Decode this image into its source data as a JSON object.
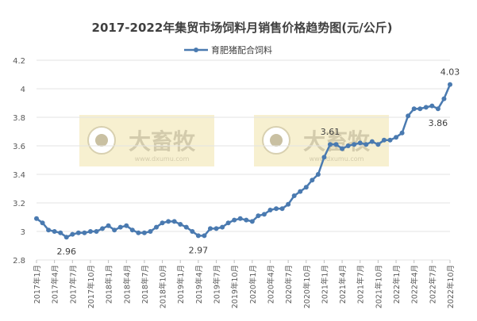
{
  "chart_data": {
    "type": "line",
    "title": "2017-2022年集贸市场饲料月销售价格趋势图(元/公斤)",
    "xlabel": "",
    "ylabel": "",
    "ylim": [
      2.8,
      4.2
    ],
    "yticks": [
      "2.8",
      "3",
      "3.2",
      "3.4",
      "3.6",
      "3.8",
      "4",
      "4.2"
    ],
    "grid": true,
    "legend_position": "top",
    "line_color": "#4a7ab0",
    "watermark": "大畜牧 www.dxumu.com",
    "categories": [
      "2017年1月",
      "2017年2月",
      "2017年3月",
      "2017年4月",
      "2017年5月",
      "2017年6月",
      "2017年7月",
      "2017年8月",
      "2017年9月",
      "2017年10月",
      "2017年11月",
      "2017年12月",
      "2018年1月",
      "2018年2月",
      "2018年3月",
      "2018年4月",
      "2018年5月",
      "2018年6月",
      "2018年7月",
      "2018年8月",
      "2018年9月",
      "2018年10月",
      "2018年11月",
      "2018年12月",
      "2019年1月",
      "2019年2月",
      "2019年3月",
      "2019年4月",
      "2019年5月",
      "2019年6月",
      "2019年7月",
      "2019年8月",
      "2019年9月",
      "2019年10月",
      "2019年11月",
      "2019年12月",
      "2020年1月",
      "2020年2月",
      "2020年3月",
      "2020年4月",
      "2020年5月",
      "2020年6月",
      "2020年7月",
      "2020年8月",
      "2020年9月",
      "2020年10月",
      "2020年11月",
      "2020年12月",
      "2021年1月",
      "2021年2月",
      "2021年3月",
      "2021年4月",
      "2021年5月",
      "2021年6月",
      "2021年7月",
      "2021年8月",
      "2021年9月",
      "2021年10月",
      "2021年11月",
      "2021年12月",
      "2022年1月",
      "2022年2月",
      "2022年3月",
      "2022年4月",
      "2022年5月",
      "2022年6月",
      "2022年7月",
      "2022年8月",
      "2022年9月",
      "2022年10月"
    ],
    "x_tick_labels": [
      "2017年1月",
      "2017年4月",
      "2017年7月",
      "2017年10月",
      "2018年1月",
      "2018年4月",
      "2018年7月",
      "2018年10月",
      "2019年1月",
      "2019年4月",
      "2019年7月",
      "2019年10月",
      "2020年1月",
      "2020年4月",
      "2020年7月",
      "2020年10月",
      "2021年1月",
      "2021年4月",
      "2021年7月",
      "2021年10月",
      "2022年1月",
      "2022年4月",
      "2022年7月",
      "2022年10月"
    ],
    "series": [
      {
        "name": "育肥猪配合饲料",
        "values": [
          3.09,
          3.06,
          3.01,
          3.0,
          2.99,
          2.96,
          2.98,
          2.99,
          2.99,
          3.0,
          3.0,
          3.02,
          3.04,
          3.01,
          3.03,
          3.04,
          3.01,
          2.99,
          2.99,
          3.0,
          3.03,
          3.06,
          3.07,
          3.07,
          3.05,
          3.03,
          3.0,
          2.97,
          2.97,
          3.02,
          3.02,
          3.03,
          3.06,
          3.08,
          3.09,
          3.08,
          3.07,
          3.11,
          3.12,
          3.15,
          3.16,
          3.16,
          3.19,
          3.25,
          3.28,
          3.31,
          3.36,
          3.4,
          3.52,
          3.61,
          3.61,
          3.58,
          3.6,
          3.61,
          3.62,
          3.61,
          3.63,
          3.61,
          3.64,
          3.64,
          3.66,
          3.69,
          3.81,
          3.86,
          3.86,
          3.87,
          3.88,
          3.86,
          3.93,
          4.03
        ]
      }
    ],
    "annotations": [
      {
        "index": 5,
        "label": "2.96"
      },
      {
        "index": 27,
        "label": "2.97"
      },
      {
        "index": 49,
        "label": "3.61"
      },
      {
        "index": 67,
        "label": "3.86"
      },
      {
        "index": 69,
        "label": "4.03"
      }
    ]
  }
}
